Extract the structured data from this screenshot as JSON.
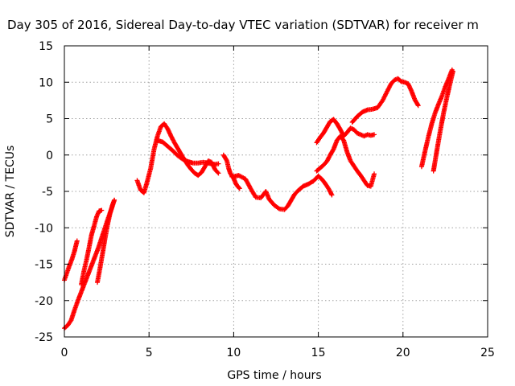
{
  "chart_data": {
    "type": "scatter",
    "title": "Day 305 of 2016, Sidereal Day-to-day VTEC variation (SDTVAR) for receiver m",
    "xlabel": "GPS time / hours",
    "ylabel": "SDTVAR / TECUs",
    "xlim": [
      0,
      25
    ],
    "ylim": [
      -25,
      15
    ],
    "xticks": [
      0,
      5,
      10,
      15,
      20,
      25
    ],
    "yticks": [
      -25,
      -20,
      -15,
      -10,
      -5,
      0,
      5,
      10,
      15
    ],
    "grid": true,
    "marker": "plus",
    "colors": {
      "series": "#ff0000",
      "grid": "#a0a0a0",
      "axes": "#000000"
    },
    "series": [
      {
        "x": [
          0.0,
          0.2,
          0.4,
          0.6,
          0.8,
          1.0,
          1.2,
          1.4,
          1.6,
          1.8,
          2.0,
          2.2,
          2.4,
          2.6,
          2.8,
          2.95
        ],
        "y": [
          -23.8,
          -23.4,
          -22.7,
          -21.3,
          -20.0,
          -18.8,
          -17.6,
          -16.4,
          -15.2,
          -14.0,
          -12.8,
          -11.4,
          -10.0,
          -8.6,
          -7.3,
          -6.2
        ]
      },
      {
        "x": [
          0.0,
          0.15,
          0.3,
          0.45,
          0.6,
          0.75
        ],
        "y": [
          -17.2,
          -16.2,
          -15.2,
          -14.3,
          -13.2,
          -11.8
        ]
      },
      {
        "x": [
          1.0,
          1.15,
          1.3,
          1.45,
          1.6,
          1.75,
          1.9,
          2.05,
          2.2
        ],
        "y": [
          -17.8,
          -16.0,
          -14.5,
          -12.8,
          -11.0,
          -9.8,
          -8.5,
          -7.7,
          -7.6
        ]
      },
      {
        "x": [
          1.95,
          2.1,
          2.25,
          2.4,
          2.55,
          2.7,
          2.85,
          2.95
        ],
        "y": [
          -17.5,
          -15.6,
          -13.6,
          -11.5,
          -9.6,
          -8.0,
          -6.8,
          -6.2
        ]
      },
      {
        "x": [
          4.3,
          4.5,
          4.7,
          4.9,
          5.1,
          5.3,
          5.5,
          5.7,
          5.9,
          6.1,
          6.3,
          6.5,
          6.7,
          6.9,
          7.1,
          7.3,
          7.5,
          7.7,
          7.9,
          8.1,
          8.3,
          8.5,
          8.7,
          8.9,
          9.1
        ],
        "y": [
          -3.5,
          -4.8,
          -5.2,
          -3.6,
          -1.8,
          0.8,
          2.6,
          3.9,
          4.3,
          3.6,
          2.6,
          1.7,
          0.9,
          0.1,
          -0.7,
          -1.4,
          -2.0,
          -2.5,
          -2.8,
          -2.4,
          -1.6,
          -0.8,
          -1.0,
          -2.0,
          -2.5
        ]
      },
      {
        "x": [
          5.5,
          5.8,
          6.1,
          6.4,
          6.7,
          7.0,
          7.3,
          7.6,
          7.9,
          8.2,
          8.5,
          8.8,
          9.1
        ],
        "y": [
          2.0,
          1.8,
          1.2,
          0.6,
          -0.1,
          -0.6,
          -0.9,
          -1.1,
          -1.1,
          -1.0,
          -1.1,
          -1.3,
          -1.2
        ]
      },
      {
        "x": [
          9.4,
          9.6,
          9.7,
          9.8,
          9.9,
          10.0,
          10.1,
          10.2,
          10.35
        ],
        "y": [
          0.0,
          -0.8,
          -1.8,
          -2.5,
          -2.9,
          -3.2,
          -3.8,
          -4.2,
          -4.6
        ]
      },
      {
        "x": [
          9.9,
          10.3,
          10.7,
          11.0,
          11.3,
          11.6,
          11.9,
          12.1,
          12.4,
          12.7,
          13.0,
          13.2,
          13.4,
          13.6,
          13.8,
          14.1,
          14.4,
          14.7,
          15.0,
          15.2,
          15.4,
          15.6,
          15.8
        ],
        "y": [
          -3.0,
          -2.8,
          -3.3,
          -4.6,
          -5.8,
          -5.9,
          -5.0,
          -6.1,
          -6.9,
          -7.4,
          -7.5,
          -7.0,
          -6.2,
          -5.4,
          -4.9,
          -4.3,
          -4.0,
          -3.6,
          -2.9,
          -3.3,
          -3.9,
          -4.6,
          -5.5
        ]
      },
      {
        "x": [
          14.9,
          15.1,
          15.3,
          15.5,
          15.7,
          15.9,
          16.1,
          16.3,
          16.5,
          16.7,
          16.9,
          17.1,
          17.3,
          17.5,
          17.7,
          17.9,
          18.1,
          18.3
        ],
        "y": [
          1.7,
          2.4,
          3.0,
          3.8,
          4.6,
          4.9,
          4.3,
          3.5,
          2.6,
          3.1,
          3.7,
          3.5,
          3.0,
          2.8,
          2.6,
          2.8,
          2.7,
          2.8
        ]
      },
      {
        "x": [
          14.9,
          15.1,
          15.3,
          15.5,
          15.7,
          15.9,
          16.1,
          16.3,
          16.5,
          16.7,
          16.9,
          17.1,
          17.3,
          17.5,
          17.7,
          17.9,
          18.1,
          18.3
        ],
        "y": [
          -2.2,
          -1.8,
          -1.4,
          -0.9,
          0.0,
          0.8,
          2.0,
          2.6,
          2.0,
          0.4,
          -0.8,
          -1.5,
          -2.2,
          -2.8,
          -3.5,
          -4.2,
          -4.3,
          -2.6
        ]
      },
      {
        "x": [
          17.0,
          17.3,
          17.6,
          17.9,
          18.2,
          18.5,
          18.8,
          19.1,
          19.3,
          19.5,
          19.7,
          19.9,
          20.1,
          20.3,
          20.5,
          20.7,
          20.9
        ],
        "y": [
          4.5,
          5.3,
          5.9,
          6.2,
          6.3,
          6.5,
          7.5,
          8.9,
          9.8,
          10.3,
          10.5,
          10.1,
          10.0,
          9.8,
          8.8,
          7.6,
          6.8
        ]
      },
      {
        "x": [
          21.1,
          21.3,
          21.5,
          21.7,
          21.9,
          22.1,
          22.3,
          22.5,
          22.7,
          22.9
        ],
        "y": [
          -1.6,
          0.5,
          2.5,
          4.3,
          5.8,
          7.0,
          8.1,
          9.4,
          10.5,
          11.7
        ]
      },
      {
        "x": [
          21.8,
          22.0,
          22.2,
          22.4,
          22.6,
          22.8,
          22.95
        ],
        "y": [
          -2.2,
          0.6,
          3.3,
          5.8,
          8.0,
          10.0,
          11.5
        ]
      }
    ]
  }
}
